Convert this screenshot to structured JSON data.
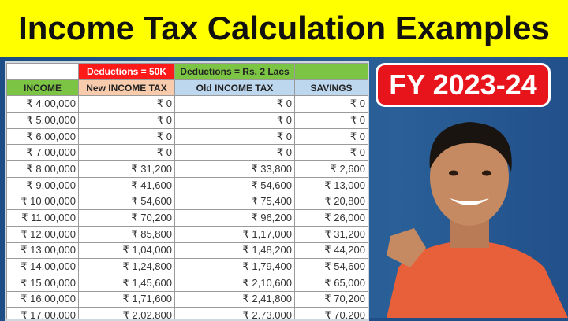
{
  "title": "Income Tax Calculation Examples",
  "badge": "FY 2023-24",
  "table": {
    "group_headers": [
      "",
      "Deductions = 50K",
      "Deductions = Rs. 2 Lacs",
      ""
    ],
    "columns": [
      "INCOME",
      "New INCOME TAX",
      "Old INCOME TAX",
      "SAVINGS"
    ],
    "rows": [
      [
        "₹ 4,00,000",
        "₹ 0",
        "₹ 0",
        "₹ 0"
      ],
      [
        "₹ 5,00,000",
        "₹ 0",
        "₹ 0",
        "₹ 0"
      ],
      [
        "₹ 6,00,000",
        "₹ 0",
        "₹ 0",
        "₹ 0"
      ],
      [
        "₹ 7,00,000",
        "₹ 0",
        "₹ 0",
        "₹ 0"
      ],
      [
        "₹ 8,00,000",
        "₹ 31,200",
        "₹ 33,800",
        "₹ 2,600"
      ],
      [
        "₹ 9,00,000",
        "₹ 41,600",
        "₹ 54,600",
        "₹ 13,000"
      ],
      [
        "₹ 10,00,000",
        "₹ 54,600",
        "₹ 75,400",
        "₹ 20,800"
      ],
      [
        "₹ 11,00,000",
        "₹ 70,200",
        "₹ 96,200",
        "₹ 26,000"
      ],
      [
        "₹ 12,00,000",
        "₹ 85,800",
        "₹ 1,17,000",
        "₹ 31,200"
      ],
      [
        "₹ 13,00,000",
        "₹ 1,04,000",
        "₹ 1,48,200",
        "₹ 44,200"
      ],
      [
        "₹ 14,00,000",
        "₹ 1,24,800",
        "₹ 1,79,400",
        "₹ 54,600"
      ],
      [
        "₹ 15,00,000",
        "₹ 1,45,600",
        "₹ 2,10,600",
        "₹ 65,000"
      ],
      [
        "₹ 16,00,000",
        "₹ 1,71,600",
        "₹ 2,41,800",
        "₹ 70,200"
      ],
      [
        "₹ 17,00,000",
        "₹ 2,02,800",
        "₹ 2,73,000",
        "₹ 70,200"
      ]
    ]
  }
}
